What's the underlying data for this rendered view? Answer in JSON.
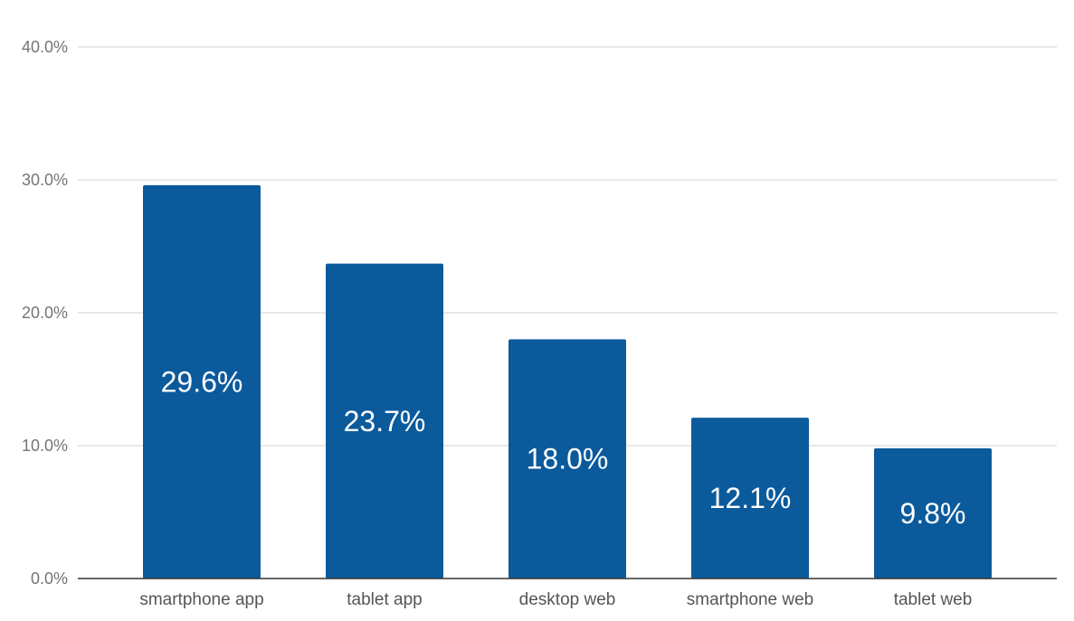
{
  "chart_data": {
    "type": "bar",
    "title": "",
    "xlabel": "",
    "ylabel": "",
    "categories": [
      "smartphone app",
      "tablet app",
      "desktop web",
      "smartphone web",
      "tablet web"
    ],
    "values": [
      29.6,
      23.7,
      18.0,
      12.1,
      9.8
    ],
    "data_labels": [
      "29.6%",
      "23.7%",
      "18.0%",
      "12.1%",
      "9.8%"
    ],
    "ylim": [
      0,
      40
    ],
    "yticks": [
      0,
      10,
      20,
      30,
      40
    ],
    "ytick_labels": [
      "0.0%",
      "10.0%",
      "20.0%",
      "30.0%",
      "40.0%"
    ],
    "grid": true,
    "legend": "none",
    "colors": {
      "bar": "#0b5a9c",
      "grid": "#d0d0d0",
      "axis": "#333333",
      "data_label": "#ffffff"
    }
  }
}
